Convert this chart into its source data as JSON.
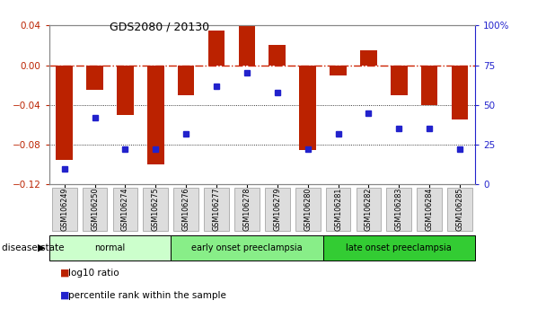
{
  "title": "GDS2080 / 20130",
  "samples": [
    "GSM106249",
    "GSM106250",
    "GSM106274",
    "GSM106275",
    "GSM106276",
    "GSM106277",
    "GSM106278",
    "GSM106279",
    "GSM106280",
    "GSM106281",
    "GSM106282",
    "GSM106283",
    "GSM106284",
    "GSM106285"
  ],
  "log10_ratio": [
    -0.095,
    -0.025,
    -0.05,
    -0.1,
    -0.03,
    0.035,
    0.04,
    0.02,
    -0.085,
    -0.01,
    0.015,
    -0.03,
    -0.04,
    -0.055
  ],
  "percentile_rank": [
    10,
    42,
    22,
    22,
    32,
    62,
    70,
    58,
    22,
    32,
    45,
    35,
    35,
    22
  ],
  "bar_color": "#bb2200",
  "dot_color": "#2222cc",
  "ylim_left": [
    -0.12,
    0.04
  ],
  "ylim_right": [
    0,
    100
  ],
  "yticks_left": [
    -0.12,
    -0.08,
    -0.04,
    0.0,
    0.04
  ],
  "yticks_right": [
    0,
    25,
    50,
    75,
    100
  ],
  "groups": [
    {
      "label": "normal",
      "start": 0,
      "end": 3,
      "color": "#ccffcc"
    },
    {
      "label": "early onset preeclampsia",
      "start": 4,
      "end": 8,
      "color": "#88ee88"
    },
    {
      "label": "late onset preeclampsia",
      "start": 9,
      "end": 13,
      "color": "#33cc33"
    }
  ],
  "disease_state_label": "disease state",
  "legend_bar_label": "log10 ratio",
  "legend_dot_label": "percentile rank within the sample",
  "background_color": "#ffffff",
  "zeroline_color": "#cc2200",
  "bar_width": 0.55
}
